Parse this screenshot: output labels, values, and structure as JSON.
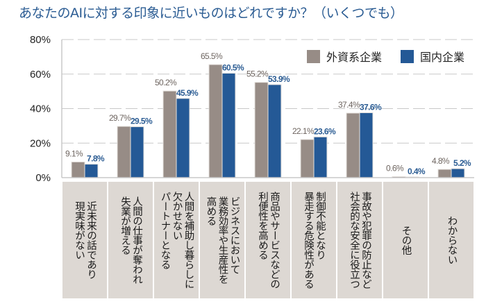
{
  "chart_data": {
    "type": "bar",
    "title": "あなたのAIに対する印象に近いものはどれですか？（いくつでも）",
    "xlabel": "",
    "ylabel": "",
    "ylim": [
      0,
      80
    ],
    "yticks": [
      0,
      20,
      40,
      60,
      80
    ],
    "ytick_labels": [
      "0%",
      "20%",
      "40%",
      "60%",
      "80%"
    ],
    "grid": true,
    "legend_position": "top-right",
    "categories": [
      "近未来の話であり\n現実味がない",
      "人間の仕事が奪われ\n失業が増える",
      "人間を補助し暮らしに\n欠かせない\nパートナーとなる",
      "ビジネスにおいて\n業務効率や生産性を\n高める",
      "商品やサービスなどの\n利便性を高める",
      "制御不能となり\n暴走する危険性がある",
      "事故や犯罪の防止など\n社会的な安全に役立つ",
      "その他",
      "わからない"
    ],
    "series": [
      {
        "name": "外資系企業",
        "color": "#978c86",
        "values": [
          9.1,
          29.7,
          50.2,
          65.5,
          55.2,
          22.1,
          37.4,
          0.6,
          4.8
        ],
        "labels": [
          "9.1%",
          "29.7%",
          "50.2%",
          "65.5%",
          "55.2%",
          "22.1%",
          "37.4%",
          "0.6%",
          "4.8%"
        ]
      },
      {
        "name": "国内企業",
        "color": "#245996",
        "values": [
          7.8,
          29.5,
          45.9,
          60.5,
          53.9,
          23.6,
          37.6,
          0.4,
          5.2
        ],
        "labels": [
          "7.8%",
          "29.5%",
          "45.9%",
          "60.5%",
          "53.9%",
          "23.6%",
          "37.6%",
          "0.4%",
          "5.2%"
        ]
      }
    ]
  }
}
